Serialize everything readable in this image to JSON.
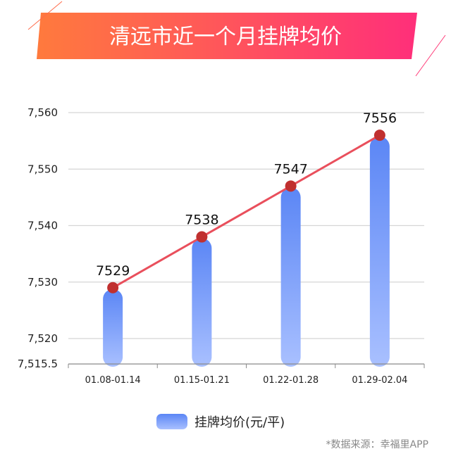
{
  "colors": {
    "banner_start": "#ff7a3d",
    "banner_end": "#ff2f7a",
    "bar_top": "#5b86f5",
    "bar_bottom": "#a9c0ff",
    "line": "#e94f5c",
    "point": "#c0302f",
    "grid": "#d5d5d5"
  },
  "chart_data": {
    "type": "bar",
    "title": "清远市近一个月挂牌均价",
    "categories": [
      "01.08-01.14",
      "01.15-01.21",
      "01.22-01.28",
      "01.29-02.04"
    ],
    "values": [
      7529,
      7538,
      7547,
      7556
    ],
    "value_labels": [
      "7529",
      "7538",
      "7547",
      "7556"
    ],
    "overlay_line": true,
    "ylim": [
      7515.5,
      7560
    ],
    "yticks": [
      7515.5,
      7520,
      7530,
      7540,
      7550,
      7560
    ],
    "ytick_labels": [
      "7,515.5",
      "7,520",
      "7,530",
      "7,540",
      "7,550",
      "7,560"
    ],
    "grid": true,
    "legend": {
      "label": "挂牌均价(元/平)",
      "placement": "bottom-center"
    }
  },
  "source": "*数据来源：幸福里APP"
}
